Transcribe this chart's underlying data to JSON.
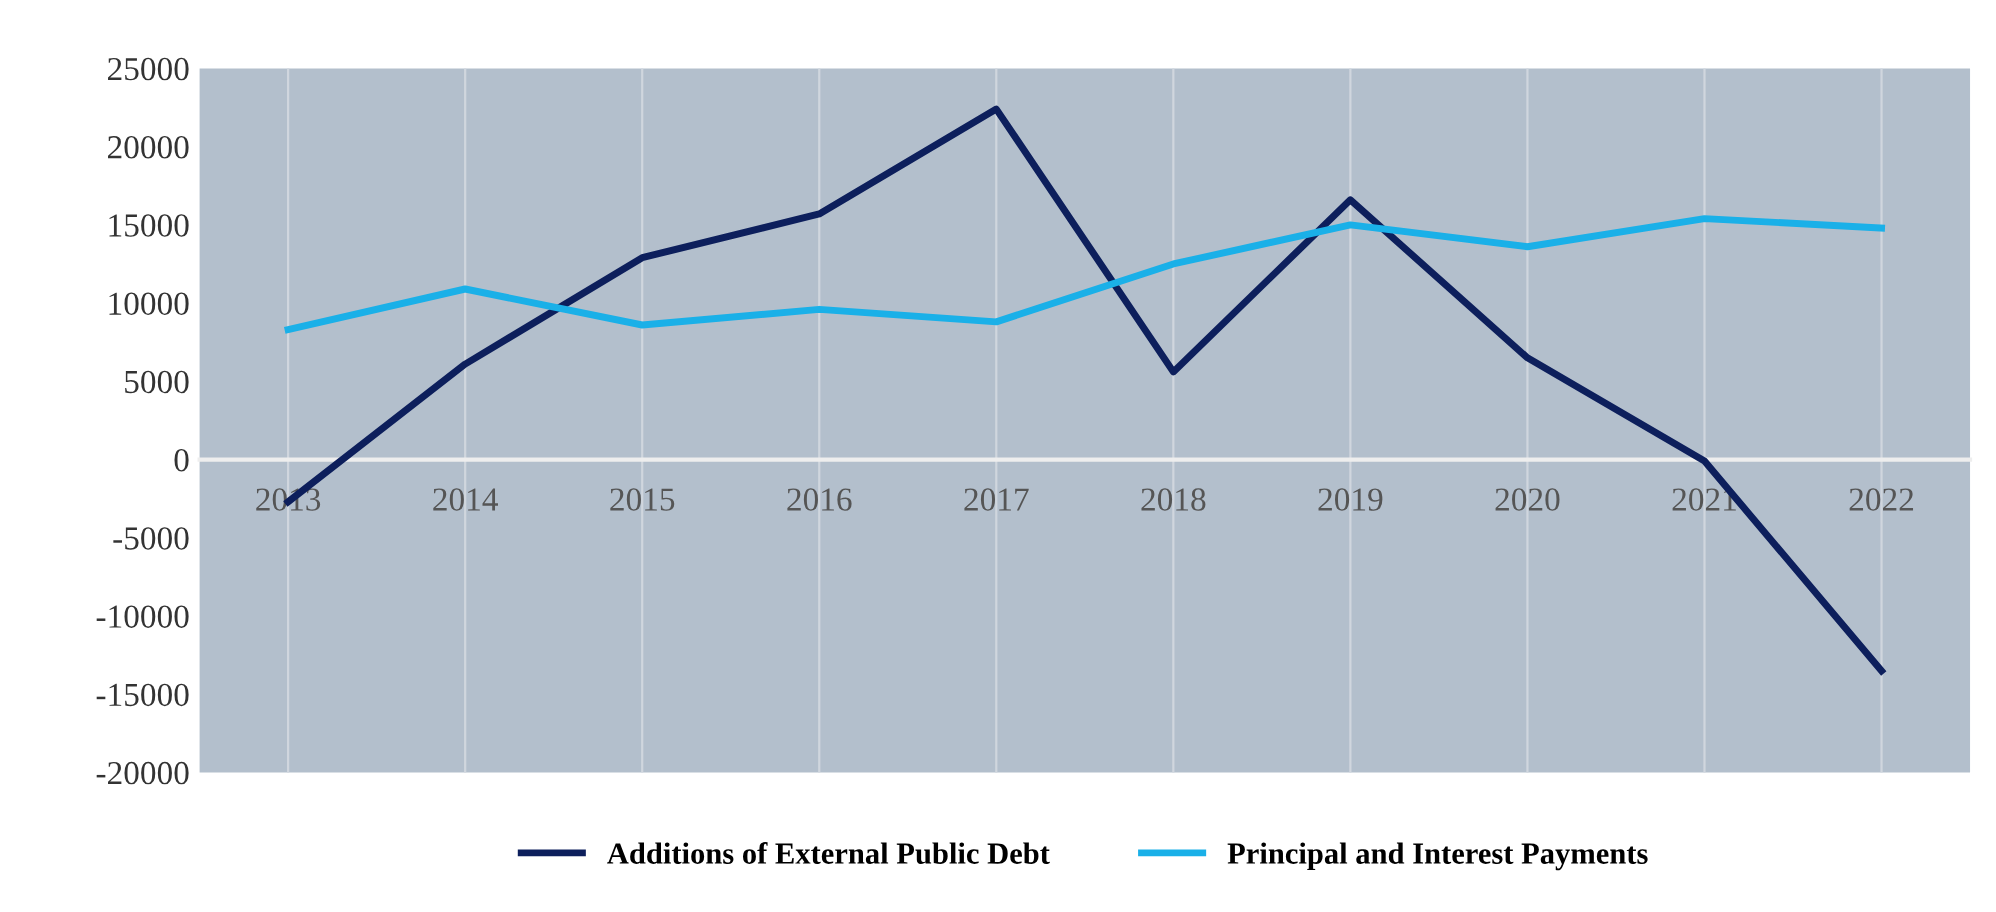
{
  "chart_data": {
    "type": "line",
    "categories": [
      "2013",
      "2014",
      "2015",
      "2016",
      "2017",
      "2018",
      "2019",
      "2020",
      "2021",
      "2022"
    ],
    "series": [
      {
        "name": "Additions of External Public Debt",
        "color": "#0d1f5c",
        "values": [
          -2700,
          6100,
          12900,
          15700,
          22400,
          5600,
          16600,
          6500,
          -100,
          -13500
        ]
      },
      {
        "name": "Principal and Interest Payments",
        "color": "#1ab0e8",
        "values": [
          8300,
          10900,
          8600,
          9600,
          8800,
          12500,
          15000,
          13600,
          15400,
          14800
        ]
      }
    ],
    "ylim": [
      -20000,
      25000
    ],
    "yticks": [
      -20000,
      -15000,
      -10000,
      -5000,
      0,
      5000,
      10000,
      15000,
      20000,
      25000
    ],
    "grid": "x",
    "legend": "bottom",
    "marker": "none",
    "line_style": "solid"
  }
}
